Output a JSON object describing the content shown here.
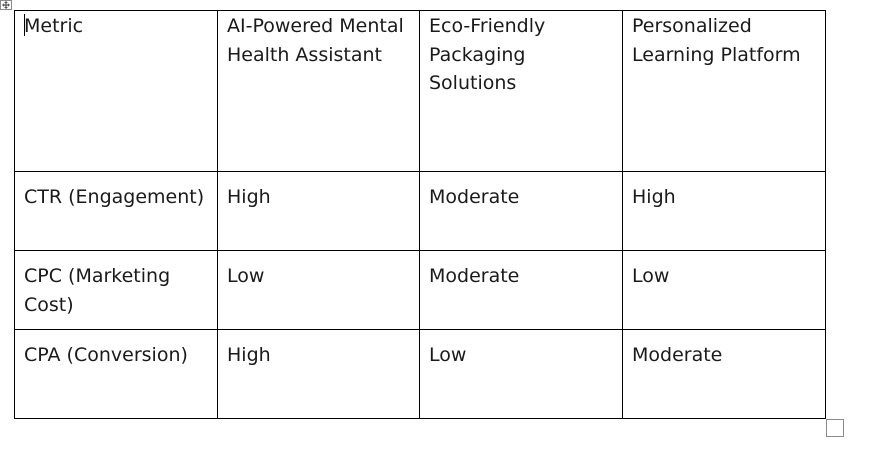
{
  "table": {
    "header": [
      "Metric",
      "AI-Powered Mental Health Assistant",
      "Eco-Friendly Packaging Solutions",
      "Personalized Learning Platform"
    ],
    "rows": [
      [
        "CTR (Engagement)",
        "High",
        "Moderate",
        "High"
      ],
      [
        "CPC (Marketing Cost)",
        "Low",
        "Moderate",
        "Low"
      ],
      [
        "CPA (Conversion)",
        "High",
        "Low",
        "Moderate"
      ]
    ]
  },
  "icons": {
    "move_handle": "table-move-icon",
    "resize_handle": "table-resize-icon"
  }
}
